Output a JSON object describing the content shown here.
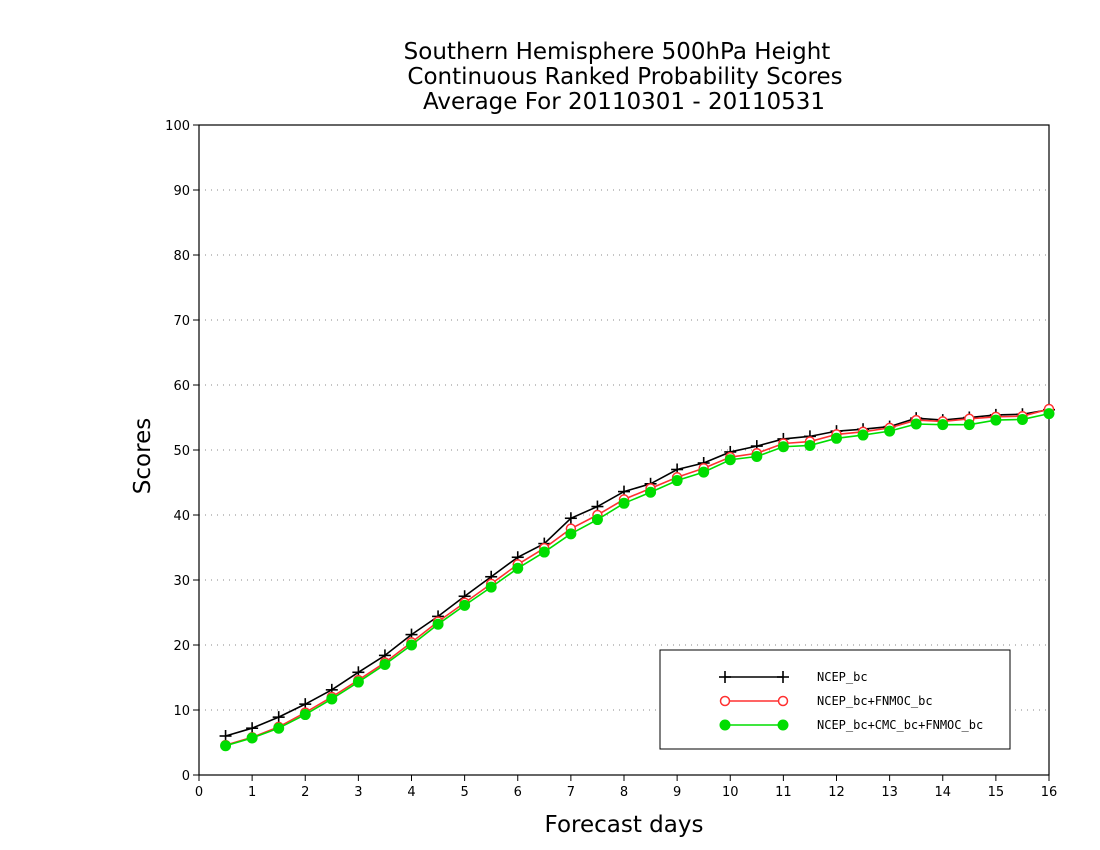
{
  "chart_data": {
    "type": "line",
    "title_lines": [
      "Southern Hemisphere 500hPa Height",
      "Continuous Ranked Probability Scores",
      "Average For 20110301 - 20110531"
    ],
    "xlabel": "Forecast days",
    "ylabel": "Scores",
    "xlim": [
      0,
      16
    ],
    "ylim": [
      0,
      100
    ],
    "x_ticks": [
      0,
      1,
      2,
      3,
      4,
      5,
      6,
      7,
      8,
      9,
      10,
      11,
      12,
      13,
      14,
      15,
      16
    ],
    "y_ticks": [
      0,
      10,
      20,
      30,
      40,
      50,
      60,
      70,
      80,
      90,
      100
    ],
    "grid": "horizontal dotted",
    "legend_position": "bottom-right",
    "x": [
      0.5,
      1,
      1.5,
      2,
      2.5,
      3,
      3.5,
      4,
      4.5,
      5,
      5.5,
      6,
      6.5,
      7,
      7.5,
      8,
      8.5,
      9,
      9.5,
      10,
      10.5,
      11,
      11.5,
      12,
      12.5,
      13,
      13.5,
      14,
      14.5,
      15,
      15.5,
      16
    ],
    "series": [
      {
        "name": "NCEP_bc",
        "color": "#000000",
        "marker": "plus",
        "values": [
          6.0,
          7.2,
          8.9,
          10.9,
          13.1,
          15.8,
          18.4,
          21.6,
          24.4,
          27.5,
          30.5,
          33.5,
          35.6,
          39.5,
          41.3,
          43.6,
          44.8,
          47.0,
          48.0,
          49.7,
          50.6,
          51.7,
          52.1,
          52.9,
          53.2,
          53.6,
          54.9,
          54.6,
          55.0,
          55.4,
          55.5,
          56.2
        ]
      },
      {
        "name": "NCEP_bc+FNMOC_bc",
        "color": "#ff3030",
        "marker": "open-circle",
        "values": [
          4.6,
          5.8,
          7.4,
          9.6,
          12.0,
          14.6,
          17.3,
          20.4,
          23.6,
          26.5,
          29.4,
          32.4,
          34.9,
          37.9,
          40.0,
          42.4,
          44.1,
          45.8,
          47.2,
          48.9,
          49.5,
          51.0,
          51.3,
          52.4,
          52.8,
          53.4,
          54.6,
          54.4,
          54.8,
          55.1,
          55.2,
          56.3
        ]
      },
      {
        "name": "NCEP_bc+CMC_bc+FNMOC_bc",
        "color": "#00dd00",
        "marker": "filled-circle",
        "values": [
          4.5,
          5.7,
          7.2,
          9.3,
          11.7,
          14.3,
          17.0,
          20.0,
          23.2,
          26.1,
          28.9,
          31.8,
          34.3,
          37.1,
          39.3,
          41.8,
          43.5,
          45.3,
          46.6,
          48.5,
          49.0,
          50.5,
          50.7,
          51.8,
          52.3,
          52.9,
          54.0,
          53.9,
          53.9,
          54.6,
          54.7,
          55.6
        ]
      }
    ]
  }
}
